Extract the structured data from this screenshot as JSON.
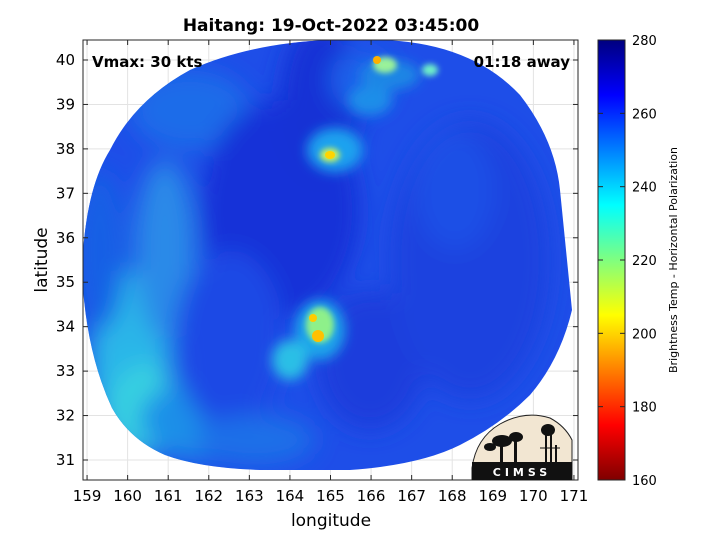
{
  "title": "Haitang: 19-Oct-2022 03:45:00",
  "vmax_label": "Vmax: 30 kts",
  "time_away_label": "01:18 away",
  "logo_text": "CIMSS",
  "chart_data": {
    "type": "heatmap",
    "xlabel": "longitude",
    "ylabel": "latitude",
    "xlim": [
      158.9,
      171.1
    ],
    "ylim": [
      30.55,
      40.45
    ],
    "xticks": [
      "159",
      "160",
      "161",
      "162",
      "163",
      "164",
      "165",
      "166",
      "167",
      "168",
      "169",
      "170",
      "171"
    ],
    "yticks": [
      "40",
      "39",
      "38",
      "37",
      "36",
      "35",
      "34",
      "33",
      "32",
      "31"
    ],
    "grid": true,
    "colorbar": {
      "label": "Brightness Temp - Horizontal Polarization",
      "range": [
        160,
        280
      ],
      "ticks": [
        "280",
        "260",
        "240",
        "220",
        "200",
        "180",
        "160"
      ],
      "colormap": "jet"
    },
    "swath_center": [
      165.0,
      35.2
    ],
    "features": [
      {
        "name": "storm core",
        "lon": 164.8,
        "lat": 33.9,
        "min_tb": 205
      },
      {
        "name": "convection north",
        "lon": 165.0,
        "lat": 37.8,
        "min_tb": 215
      },
      {
        "name": "convection northeast",
        "lon": 166.4,
        "lat": 40.0,
        "min_tb": 210
      }
    ]
  }
}
